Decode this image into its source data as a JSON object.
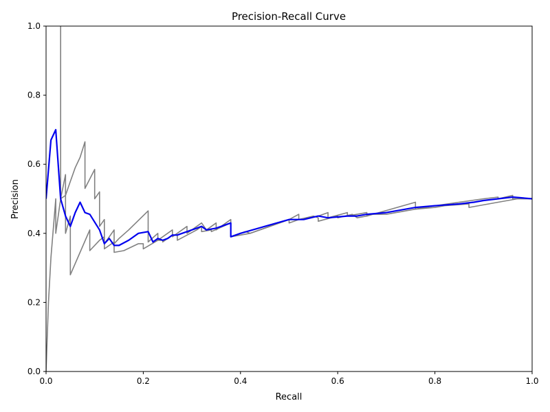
{
  "chart_data": {
    "type": "line",
    "title": "Precision-Recall Curve",
    "xlabel": "Recall",
    "ylabel": "Precision",
    "xlim": [
      0,
      1
    ],
    "ylim": [
      0,
      1
    ],
    "grid": false,
    "legend": "none",
    "x_ticks": [
      "0.0",
      "0.2",
      "0.4",
      "0.6",
      "0.8",
      "1.0"
    ],
    "y_ticks": [
      "0.0",
      "0.2",
      "0.4",
      "0.6",
      "0.8",
      "1.0"
    ],
    "series": [
      {
        "color": "#808080",
        "points": [
          [
            0.0,
            0.0
          ],
          [
            0.005,
            0.2
          ],
          [
            0.01,
            0.33
          ],
          [
            0.02,
            0.5
          ],
          [
            0.02,
            0.4
          ],
          [
            0.03,
            0.5
          ],
          [
            0.03,
            1.0
          ],
          [
            0.03,
            0.5
          ],
          [
            0.04,
            0.57
          ],
          [
            0.04,
            0.4
          ],
          [
            0.05,
            0.45
          ],
          [
            0.05,
            0.28
          ],
          [
            0.09,
            0.41
          ],
          [
            0.09,
            0.35
          ],
          [
            0.11,
            0.38
          ],
          [
            0.12,
            0.39
          ],
          [
            0.12,
            0.355
          ],
          [
            0.14,
            0.375
          ],
          [
            0.14,
            0.345
          ],
          [
            0.16,
            0.35
          ],
          [
            0.19,
            0.37
          ],
          [
            0.2,
            0.37
          ],
          [
            0.2,
            0.355
          ],
          [
            0.23,
            0.38
          ],
          [
            0.24,
            0.38
          ],
          [
            0.24,
            0.375
          ],
          [
            0.26,
            0.395
          ],
          [
            0.27,
            0.395
          ],
          [
            0.27,
            0.38
          ],
          [
            0.31,
            0.41
          ],
          [
            0.32,
            0.42
          ],
          [
            0.32,
            0.405
          ],
          [
            0.34,
            0.41
          ],
          [
            0.34,
            0.405
          ],
          [
            0.38,
            0.43
          ],
          [
            0.38,
            0.39
          ],
          [
            0.4,
            0.395
          ],
          [
            0.42,
            0.4
          ],
          [
            0.5,
            0.44
          ],
          [
            0.5,
            0.43
          ],
          [
            0.52,
            0.44
          ],
          [
            0.55,
            0.45
          ],
          [
            0.56,
            0.445
          ],
          [
            0.56,
            0.435
          ],
          [
            0.6,
            0.45
          ],
          [
            0.6,
            0.445
          ],
          [
            0.63,
            0.455
          ],
          [
            0.64,
            0.445
          ],
          [
            0.66,
            0.45
          ],
          [
            0.67,
            0.455
          ],
          [
            0.7,
            0.455
          ],
          [
            0.76,
            0.47
          ],
          [
            0.8,
            0.475
          ],
          [
            0.82,
            0.48
          ],
          [
            0.87,
            0.485
          ],
          [
            0.87,
            0.475
          ],
          [
            0.93,
            0.49
          ],
          [
            0.97,
            0.5
          ],
          [
            1.0,
            0.5
          ]
        ]
      },
      {
        "color": "#808080",
        "points": [
          [
            0.03,
            0.5
          ],
          [
            0.04,
            0.51
          ],
          [
            0.05,
            0.55
          ],
          [
            0.06,
            0.59
          ],
          [
            0.07,
            0.62
          ],
          [
            0.08,
            0.665
          ],
          [
            0.08,
            0.53
          ],
          [
            0.1,
            0.585
          ],
          [
            0.1,
            0.5
          ],
          [
            0.11,
            0.52
          ],
          [
            0.11,
            0.42
          ],
          [
            0.12,
            0.44
          ],
          [
            0.12,
            0.37
          ],
          [
            0.14,
            0.41
          ],
          [
            0.14,
            0.37
          ],
          [
            0.15,
            0.385
          ],
          [
            0.17,
            0.41
          ],
          [
            0.21,
            0.465
          ],
          [
            0.21,
            0.375
          ],
          [
            0.23,
            0.4
          ],
          [
            0.23,
            0.38
          ],
          [
            0.26,
            0.41
          ],
          [
            0.26,
            0.39
          ],
          [
            0.29,
            0.42
          ],
          [
            0.29,
            0.4
          ],
          [
            0.32,
            0.43
          ],
          [
            0.33,
            0.41
          ],
          [
            0.35,
            0.43
          ],
          [
            0.35,
            0.41
          ],
          [
            0.38,
            0.44
          ],
          [
            0.38,
            0.39
          ],
          [
            0.41,
            0.405
          ],
          [
            0.42,
            0.4
          ],
          [
            0.5,
            0.44
          ],
          [
            0.52,
            0.455
          ],
          [
            0.52,
            0.44
          ],
          [
            0.56,
            0.45
          ],
          [
            0.58,
            0.46
          ],
          [
            0.58,
            0.445
          ],
          [
            0.62,
            0.46
          ],
          [
            0.62,
            0.45
          ],
          [
            0.66,
            0.46
          ],
          [
            0.66,
            0.45
          ],
          [
            0.76,
            0.49
          ],
          [
            0.76,
            0.47
          ],
          [
            0.8,
            0.48
          ],
          [
            0.85,
            0.49
          ],
          [
            0.9,
            0.5
          ],
          [
            0.93,
            0.505
          ],
          [
            0.93,
            0.5
          ],
          [
            0.96,
            0.51
          ],
          [
            0.96,
            0.5
          ],
          [
            1.0,
            0.5
          ]
        ]
      },
      {
        "color": "#0000ee",
        "points": [
          [
            0.0,
            0.5
          ],
          [
            0.01,
            0.67
          ],
          [
            0.02,
            0.7
          ],
          [
            0.03,
            0.5
          ],
          [
            0.04,
            0.45
          ],
          [
            0.05,
            0.42
          ],
          [
            0.06,
            0.46
          ],
          [
            0.07,
            0.49
          ],
          [
            0.08,
            0.46
          ],
          [
            0.09,
            0.455
          ],
          [
            0.11,
            0.41
          ],
          [
            0.12,
            0.37
          ],
          [
            0.13,
            0.385
          ],
          [
            0.14,
            0.365
          ],
          [
            0.15,
            0.365
          ],
          [
            0.17,
            0.38
          ],
          [
            0.19,
            0.4
          ],
          [
            0.21,
            0.405
          ],
          [
            0.22,
            0.375
          ],
          [
            0.23,
            0.385
          ],
          [
            0.24,
            0.38
          ],
          [
            0.25,
            0.385
          ],
          [
            0.26,
            0.395
          ],
          [
            0.27,
            0.395
          ],
          [
            0.29,
            0.405
          ],
          [
            0.31,
            0.415
          ],
          [
            0.32,
            0.42
          ],
          [
            0.33,
            0.41
          ],
          [
            0.35,
            0.415
          ],
          [
            0.38,
            0.43
          ],
          [
            0.38,
            0.39
          ],
          [
            0.4,
            0.4
          ],
          [
            0.45,
            0.42
          ],
          [
            0.5,
            0.44
          ],
          [
            0.53,
            0.44
          ],
          [
            0.56,
            0.45
          ],
          [
            0.58,
            0.445
          ],
          [
            0.62,
            0.45
          ],
          [
            0.64,
            0.45
          ],
          [
            0.66,
            0.455
          ],
          [
            0.7,
            0.46
          ],
          [
            0.76,
            0.475
          ],
          [
            0.8,
            0.48
          ],
          [
            0.85,
            0.485
          ],
          [
            0.88,
            0.49
          ],
          [
            0.9,
            0.495
          ],
          [
            0.96,
            0.505
          ],
          [
            1.0,
            0.5
          ]
        ]
      }
    ]
  }
}
